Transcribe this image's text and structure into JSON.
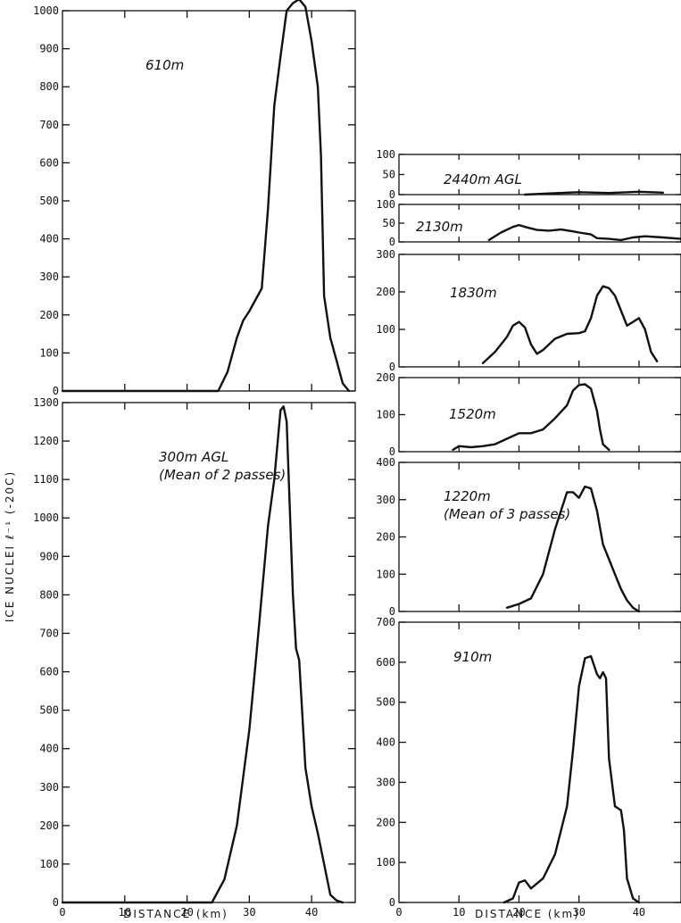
{
  "figure": {
    "ylabel": "ICE NUCLEI ℓ⁻¹ (-20C)",
    "xlabel": "DISTANCE (km)"
  },
  "chart_data": [
    {
      "id": "610",
      "type": "line",
      "label_lines": [
        "610m"
      ],
      "xlim": [
        0,
        47
      ],
      "ylim": [
        0,
        1000
      ],
      "yticks": [
        0,
        100,
        200,
        300,
        400,
        500,
        600,
        700,
        800,
        900,
        1000
      ],
      "xticks": [],
      "x": [
        0,
        25,
        26.5,
        28,
        29,
        30,
        32,
        33,
        34,
        35,
        36,
        37,
        38,
        39,
        40,
        41,
        41.5,
        42,
        43,
        44,
        45,
        46
      ],
      "y": [
        0,
        0,
        50,
        140,
        185,
        210,
        270,
        480,
        750,
        880,
        1000,
        1020,
        1030,
        1010,
        920,
        800,
        620,
        250,
        140,
        80,
        20,
        0
      ]
    },
    {
      "id": "300",
      "type": "line",
      "label_lines": [
        "300m AGL",
        "(Mean of 2 passes)"
      ],
      "xlim": [
        0,
        47
      ],
      "ylim": [
        0,
        1300
      ],
      "yticks": [
        0,
        100,
        200,
        300,
        400,
        500,
        600,
        700,
        800,
        900,
        1000,
        1100,
        1200,
        1300
      ],
      "xticks": [
        0,
        10,
        20,
        30,
        40
      ],
      "x": [
        0,
        24,
        26,
        28,
        30,
        31,
        32,
        33,
        34,
        35,
        35.5,
        36,
        37,
        37.5,
        38,
        39,
        40,
        41,
        42,
        43,
        44,
        45
      ],
      "y": [
        0,
        0,
        60,
        200,
        450,
        620,
        800,
        980,
        1100,
        1280,
        1290,
        1250,
        800,
        660,
        630,
        350,
        250,
        180,
        100,
        20,
        5,
        0
      ]
    },
    {
      "id": "2440",
      "type": "line",
      "label_lines": [
        "2440m AGL"
      ],
      "xlim": [
        0,
        47
      ],
      "ylim": [
        0,
        100
      ],
      "yticks": [
        0,
        50,
        100
      ],
      "xticks": [],
      "x": [
        21,
        25,
        30,
        35,
        40,
        44
      ],
      "y": [
        0,
        3,
        6,
        4,
        7,
        5
      ]
    },
    {
      "id": "2130",
      "type": "line",
      "label_lines": [
        "2130m"
      ],
      "xlim": [
        0,
        47
      ],
      "ylim": [
        0,
        100
      ],
      "yticks": [
        0,
        50,
        100
      ],
      "xticks": [],
      "x": [
        15,
        17,
        19,
        20,
        21,
        23,
        25,
        27,
        29,
        30,
        32,
        33,
        35,
        37,
        39,
        41,
        44,
        47
      ],
      "y": [
        5,
        25,
        40,
        45,
        40,
        32,
        30,
        33,
        28,
        25,
        20,
        10,
        8,
        5,
        12,
        15,
        12,
        8
      ]
    },
    {
      "id": "1830",
      "type": "line",
      "label_lines": [
        "1830m"
      ],
      "xlim": [
        0,
        47
      ],
      "ylim": [
        0,
        300
      ],
      "yticks": [
        0,
        100,
        200,
        300
      ],
      "xticks": [],
      "x": [
        14,
        16,
        18,
        19,
        20,
        21,
        22,
        23,
        24,
        26,
        28,
        30,
        31,
        32,
        33,
        34,
        35,
        36,
        37,
        38,
        39,
        40,
        41,
        42,
        43
      ],
      "y": [
        10,
        40,
        80,
        110,
        120,
        105,
        60,
        35,
        45,
        75,
        88,
        90,
        95,
        130,
        190,
        215,
        210,
        190,
        150,
        110,
        120,
        130,
        100,
        40,
        15
      ]
    },
    {
      "id": "1520",
      "type": "line",
      "label_lines": [
        "1520m"
      ],
      "xlim": [
        0,
        47
      ],
      "ylim": [
        0,
        200
      ],
      "yticks": [
        0,
        100,
        200
      ],
      "xticks": [],
      "x": [
        9,
        10,
        12,
        14,
        16,
        18,
        20,
        22,
        24,
        26,
        28,
        29,
        30,
        31,
        32,
        33,
        33.5,
        34,
        35
      ],
      "y": [
        5,
        15,
        12,
        15,
        20,
        35,
        50,
        50,
        60,
        90,
        125,
        165,
        180,
        182,
        170,
        110,
        60,
        20,
        5
      ]
    },
    {
      "id": "1220",
      "type": "line",
      "label_lines": [
        "1220m",
        "(Mean of 3 passes)"
      ],
      "xlim": [
        0,
        47
      ],
      "ylim": [
        0,
        400
      ],
      "yticks": [
        0,
        100,
        200,
        300,
        400
      ],
      "xticks": [],
      "x": [
        18,
        20,
        22,
        24,
        26,
        27,
        28,
        29,
        30,
        31,
        32,
        33,
        34,
        35,
        36,
        37,
        38,
        39,
        40
      ],
      "y": [
        10,
        20,
        35,
        100,
        220,
        270,
        320,
        320,
        305,
        335,
        330,
        270,
        180,
        140,
        100,
        60,
        30,
        10,
        0
      ]
    },
    {
      "id": "910",
      "type": "line",
      "label_lines": [
        "910m"
      ],
      "xlim": [
        0,
        47
      ],
      "ylim": [
        0,
        700
      ],
      "yticks": [
        0,
        100,
        200,
        300,
        400,
        500,
        600,
        700
      ],
      "xticks": [
        0,
        10,
        20,
        30,
        40
      ],
      "x": [
        17.5,
        19,
        20,
        21,
        22,
        24,
        26,
        28,
        29,
        30,
        31,
        32,
        33,
        33.5,
        34,
        34.5,
        35,
        36,
        37,
        37.5,
        38,
        39,
        40
      ],
      "y": [
        0,
        10,
        50,
        55,
        35,
        60,
        120,
        240,
        380,
        540,
        610,
        615,
        570,
        560,
        575,
        560,
        360,
        240,
        230,
        180,
        60,
        10,
        0
      ]
    }
  ]
}
